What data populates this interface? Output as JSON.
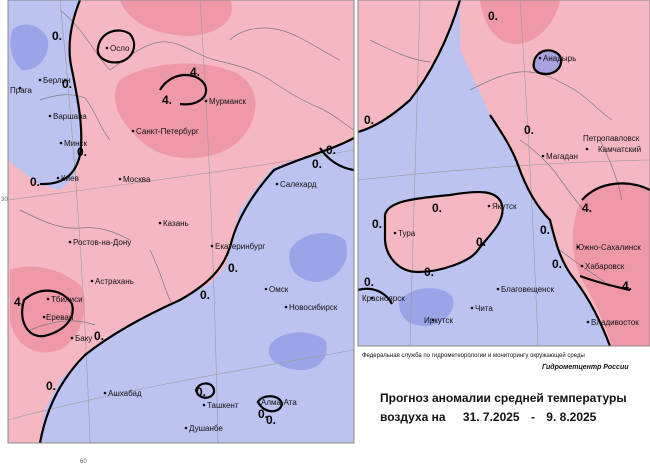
{
  "colors": {
    "warm": "#f5b8c2",
    "warm_strong": "#ec8f9f",
    "cold": "#bcc3f0",
    "cold_strong": "#8f99e6",
    "isoline": "#000000",
    "coast": "#7a7a7a"
  },
  "west_map": {
    "cities": [
      "Осло",
      "Берлин",
      "Прага",
      "Варшава",
      "Мурманск",
      "Санкт-Петербург",
      "Минск",
      "Киев",
      "Москва",
      "Салехард",
      "Казань",
      "Ростов-на-Дону",
      "Екатеринбург",
      "Астрахань",
      "Тбилиси",
      "Ереван",
      "Баку",
      "Омск",
      "Новосибирск",
      "Ашхабад",
      "Ташкент",
      "Алма-Ата",
      "Душанбе"
    ],
    "isolines": [
      "0.",
      "0.",
      "0.",
      "0.",
      "0.",
      "0.",
      "0.",
      "0.",
      "0.",
      "0.",
      "0.",
      "0.",
      "0.",
      "4.",
      "4.",
      "4."
    ],
    "ticks": [
      "30",
      "60"
    ]
  },
  "east_map": {
    "cities": [
      "Анадырь",
      "Петропавловск",
      "Камчатский",
      "Магадан",
      "Якутск",
      "Тура",
      "Южно-Сахалинск",
      "Хабаровск",
      "Благовещенск",
      "Красноярск",
      "Иркутск",
      "Чита",
      "Владивосток"
    ],
    "isolines": [
      "0.",
      "0.",
      "0.",
      "0.",
      "0.",
      "0.",
      "0.",
      "0.",
      "0.",
      "0.",
      "4.",
      "4."
    ]
  },
  "credit": {
    "agency": "Федеральная служба по гидрометеорологии и мониторингу окружающей среды",
    "center": "Гидрометцентр России"
  },
  "caption": {
    "line1": "Прогноз аномалии средней температуры",
    "line2_prefix": "воздуха на",
    "date_from": "31. 7.2025",
    "date_sep": "-",
    "date_to": "9. 8.2025"
  }
}
